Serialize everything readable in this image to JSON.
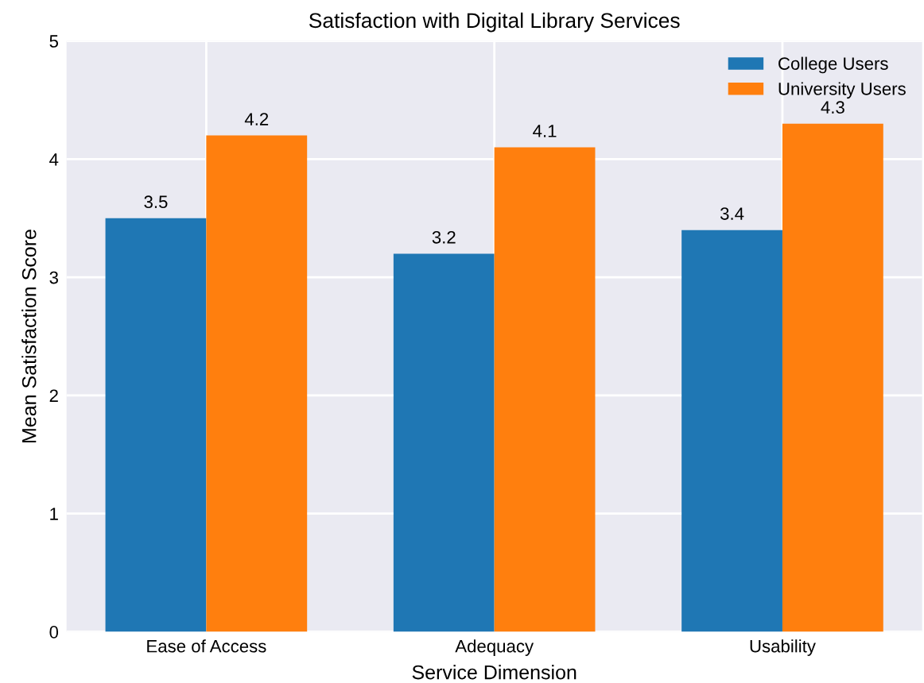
{
  "chart_data": {
    "type": "bar",
    "title": "Satisfaction with Digital Library Services",
    "xlabel": "Service Dimension",
    "ylabel": "Mean Satisfaction Score",
    "categories": [
      "Ease of Access",
      "Adequacy",
      "Usability"
    ],
    "series": [
      {
        "name": "College Users",
        "color": "#1f77b4",
        "values": [
          3.5,
          3.2,
          3.4
        ]
      },
      {
        "name": "University Users",
        "color": "#ff7f0e",
        "values": [
          4.2,
          4.1,
          4.3
        ]
      }
    ],
    "ylim": [
      0,
      5
    ],
    "yticks": [
      0,
      1,
      2,
      3,
      4,
      5
    ],
    "grid": true,
    "legend": "top right",
    "data_labels": true
  }
}
